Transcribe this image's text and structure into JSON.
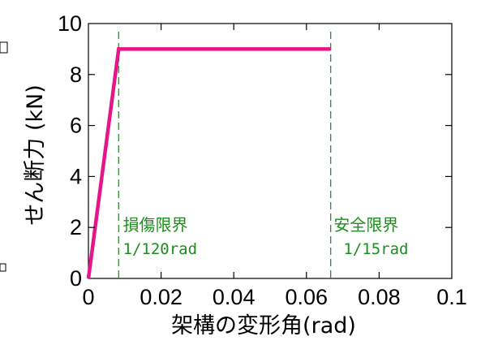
{
  "chart_data": {
    "type": "line",
    "xlabel": "架構の変形角(rad)",
    "ylabel": "せん断力 (kN)",
    "xlim": [
      0,
      0.1
    ],
    "ylim": [
      0,
      10
    ],
    "x_ticks": [
      "0",
      "0.02",
      "0.04",
      "0.06",
      "0.08",
      "0.1"
    ],
    "y_ticks": [
      "0",
      "2",
      "4",
      "6",
      "8",
      "10"
    ],
    "grid": false,
    "series": [
      {
        "color": "#e6168a",
        "x": [
          0,
          0.00833,
          0.06667
        ],
        "y": [
          0,
          9,
          9
        ]
      }
    ],
    "reference_lines": [
      {
        "x": 0.00833,
        "color": "#2e8b2e",
        "style": "dashed"
      },
      {
        "x": 0.06667,
        "color": "#2e8b2e",
        "style": "dashed"
      }
    ],
    "annotations": [
      {
        "line1": "損傷限界",
        "line2": "1/120rad",
        "x": 0.0095,
        "color": "#1e8c1e"
      },
      {
        "line1": "安全限界",
        "line2": "1/15rad",
        "x": 0.0675,
        "color": "#1e8c1e"
      }
    ]
  }
}
